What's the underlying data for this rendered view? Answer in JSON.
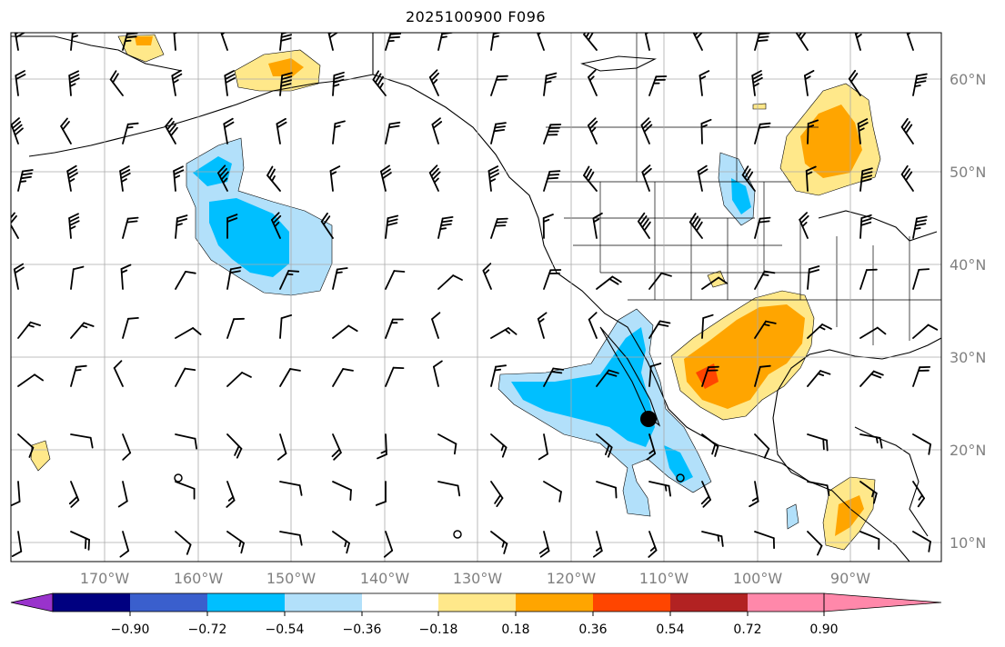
{
  "title": "2025100900 F096",
  "latitude_labels": [
    "60°N",
    "50°N",
    "40°N",
    "30°N",
    "20°N",
    "10°N"
  ],
  "longitude_labels": [
    "170°W",
    "160°W",
    "150°W",
    "140°W",
    "130°W",
    "120°W",
    "110°W",
    "100°W",
    "90°W"
  ],
  "colorbar": {
    "colors": [
      "#9933cc",
      "#000080",
      "#3a5fcd",
      "#00bfff",
      "#b2e0fa",
      "#ffffff",
      "#ffe88a",
      "#ffa500",
      "#ff4500",
      "#b22222",
      "#ff88aa"
    ],
    "tick_labels": [
      "−0.90",
      "−0.72",
      "−0.54",
      "−0.36",
      "−0.18",
      "0.18",
      "0.36",
      "0.54",
      "0.72",
      "0.90"
    ],
    "extend": "both"
  },
  "markers": {
    "station_dot": "filled-circle",
    "calm_wind": "open-circle"
  }
}
